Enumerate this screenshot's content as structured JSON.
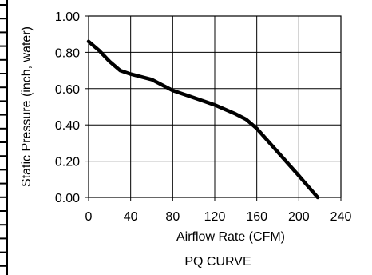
{
  "chart_data": {
    "type": "line",
    "title": "",
    "caption": "PQ CURVE",
    "xlabel": "Airflow Rate (CFM)",
    "ylabel": "Static Pressure (inch, water)",
    "xlim": [
      0,
      240
    ],
    "ylim": [
      0,
      1.0
    ],
    "xticks": [
      0,
      40,
      80,
      120,
      160,
      200,
      240
    ],
    "yticks": [
      "0.00",
      "0.20",
      "0.40",
      "0.60",
      "0.80",
      "1.00"
    ],
    "grid": true,
    "legend": "none",
    "line_color": "#000000",
    "series": [
      {
        "x": [
          0,
          10,
          20,
          30,
          40,
          60,
          80,
          100,
          120,
          140,
          150,
          160,
          180,
          200,
          218
        ],
        "y": [
          0.86,
          0.81,
          0.75,
          0.7,
          0.68,
          0.65,
          0.59,
          0.55,
          0.51,
          0.46,
          0.43,
          0.38,
          0.25,
          0.12,
          0.0
        ]
      }
    ]
  }
}
